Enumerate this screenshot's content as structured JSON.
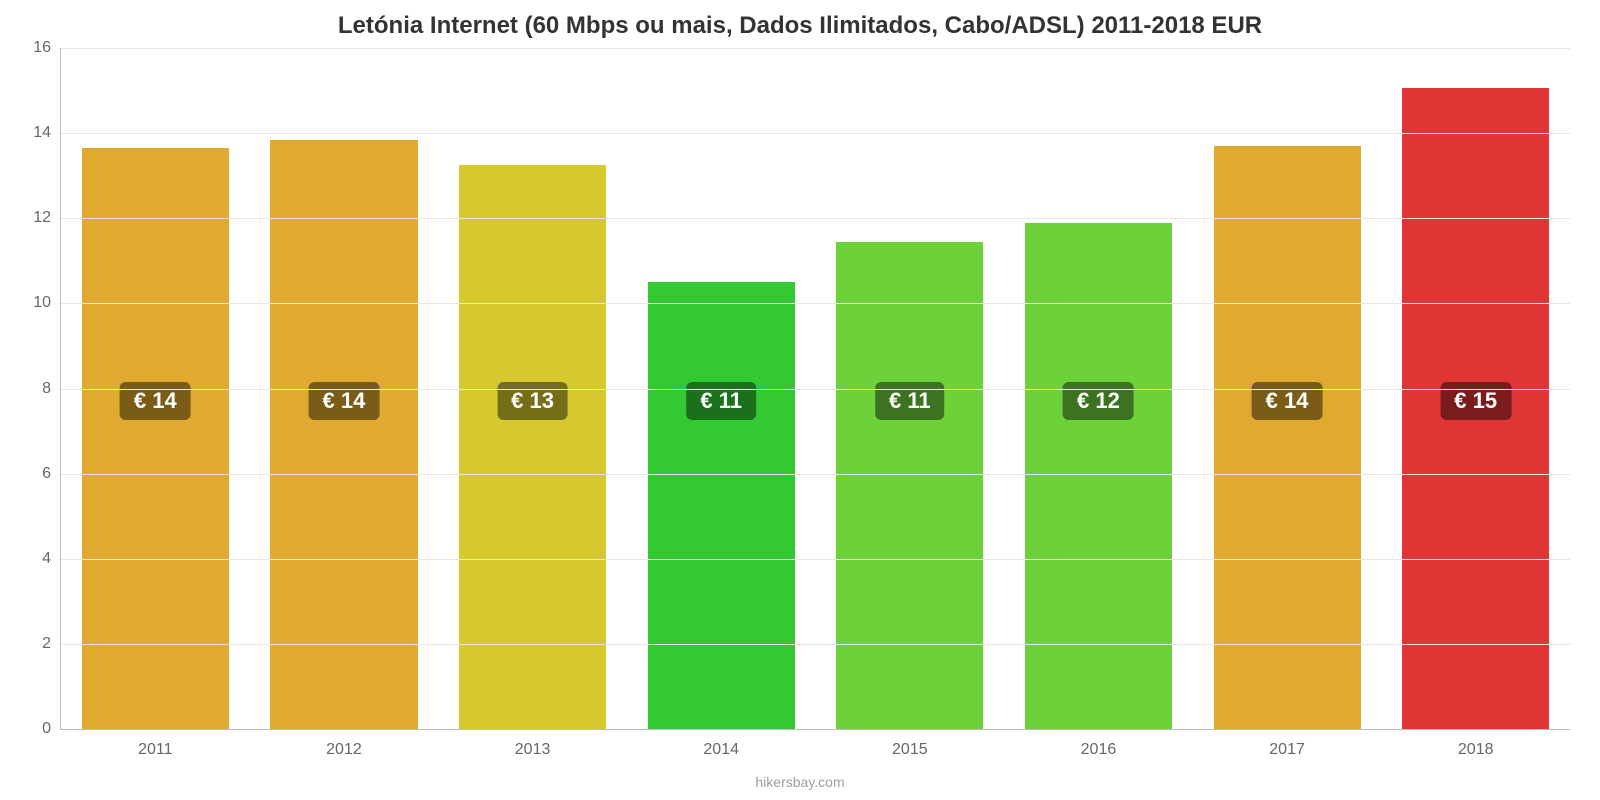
{
  "chart": {
    "type": "bar",
    "title": "Letónia Internet (60 Mbps ou mais, Dados Ilimitados, Cabo/ADSL) 2011-2018 EUR",
    "title_fontsize": 24,
    "title_color": "#333333",
    "footer": "hikersbay.com",
    "footer_fontsize": 14,
    "footer_color": "#9e9e9e",
    "background_color": "#ffffff",
    "grid_color": "#e6e6e6",
    "axis_color": "#bdbdbd",
    "tick_label_color": "#666666",
    "tick_fontsize": 16,
    "ylim_min": 0,
    "ylim_max": 16,
    "ytick_step": 2,
    "bar_width_pct": 78,
    "bar_label_fontsize": 22,
    "bar_label_radius": 6,
    "categories": [
      "2011",
      "2012",
      "2013",
      "2014",
      "2015",
      "2016",
      "2017",
      "2018"
    ],
    "values": [
      13.65,
      13.85,
      13.25,
      10.5,
      11.45,
      11.9,
      13.7,
      15.05
    ],
    "value_labels": [
      "€ 14",
      "€ 14",
      "€ 13",
      "€ 11",
      "€ 11",
      "€ 12",
      "€ 14",
      "€ 15"
    ],
    "bar_colors": [
      "#e0a92f",
      "#e0a92f",
      "#d6c92f",
      "#33c933",
      "#6dd13a",
      "#6dd13a",
      "#e0a92f",
      "#e03535"
    ],
    "label_bg_colors": [
      "#7a5c18",
      "#7a5c18",
      "#756e18",
      "#1b701b",
      "#3c7320",
      "#3c7320",
      "#7a5c18",
      "#7a1c1c"
    ],
    "label_center_value": 7.7
  }
}
